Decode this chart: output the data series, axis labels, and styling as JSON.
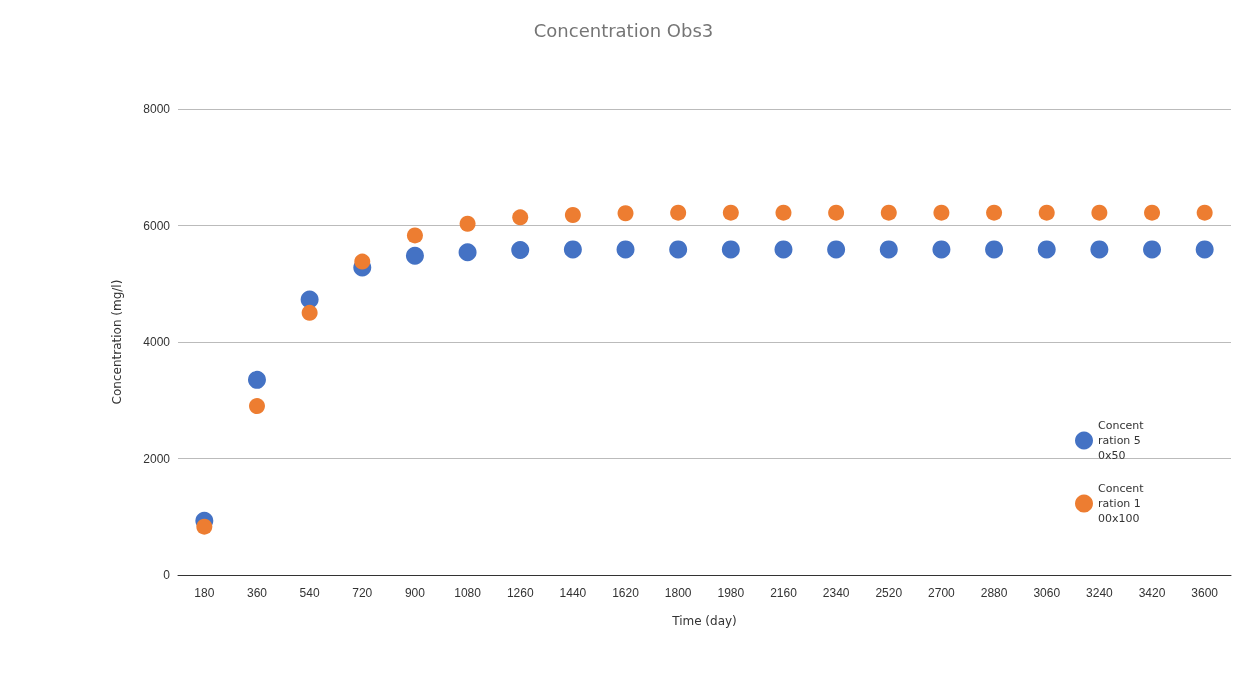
{
  "chart_data": {
    "type": "scatter",
    "title": "Concentration Obs3",
    "xlabel": "Time (day)",
    "ylabel": "Concentration (mg/l)",
    "categories": [
      "180",
      "360",
      "540",
      "720",
      "900",
      "1080",
      "1260",
      "1440",
      "1620",
      "1800",
      "1980",
      "2160",
      "2340",
      "2520",
      "2700",
      "2880",
      "3060",
      "3240",
      "3420",
      "3600"
    ],
    "series": [
      {
        "name": "Concentration 50x50",
        "color": "#4472c4",
        "values": [
          930,
          3350,
          4730,
          5280,
          5480,
          5540,
          5580,
          5590,
          5590,
          5590,
          5590,
          5590,
          5590,
          5590,
          5590,
          5590,
          5590,
          5590,
          5590,
          5590
        ]
      },
      {
        "name": "Concentration 100x100",
        "color": "#ed7d31",
        "values": [
          830,
          2900,
          4500,
          5380,
          5830,
          6030,
          6140,
          6180,
          6210,
          6220,
          6220,
          6220,
          6220,
          6220,
          6220,
          6220,
          6220,
          6220,
          6220,
          6220
        ]
      }
    ],
    "ylim": [
      0,
      8000
    ],
    "yticks": [
      0,
      2000,
      4000,
      6000,
      8000
    ],
    "grid": "y",
    "legend": "right",
    "marker": "circle"
  }
}
